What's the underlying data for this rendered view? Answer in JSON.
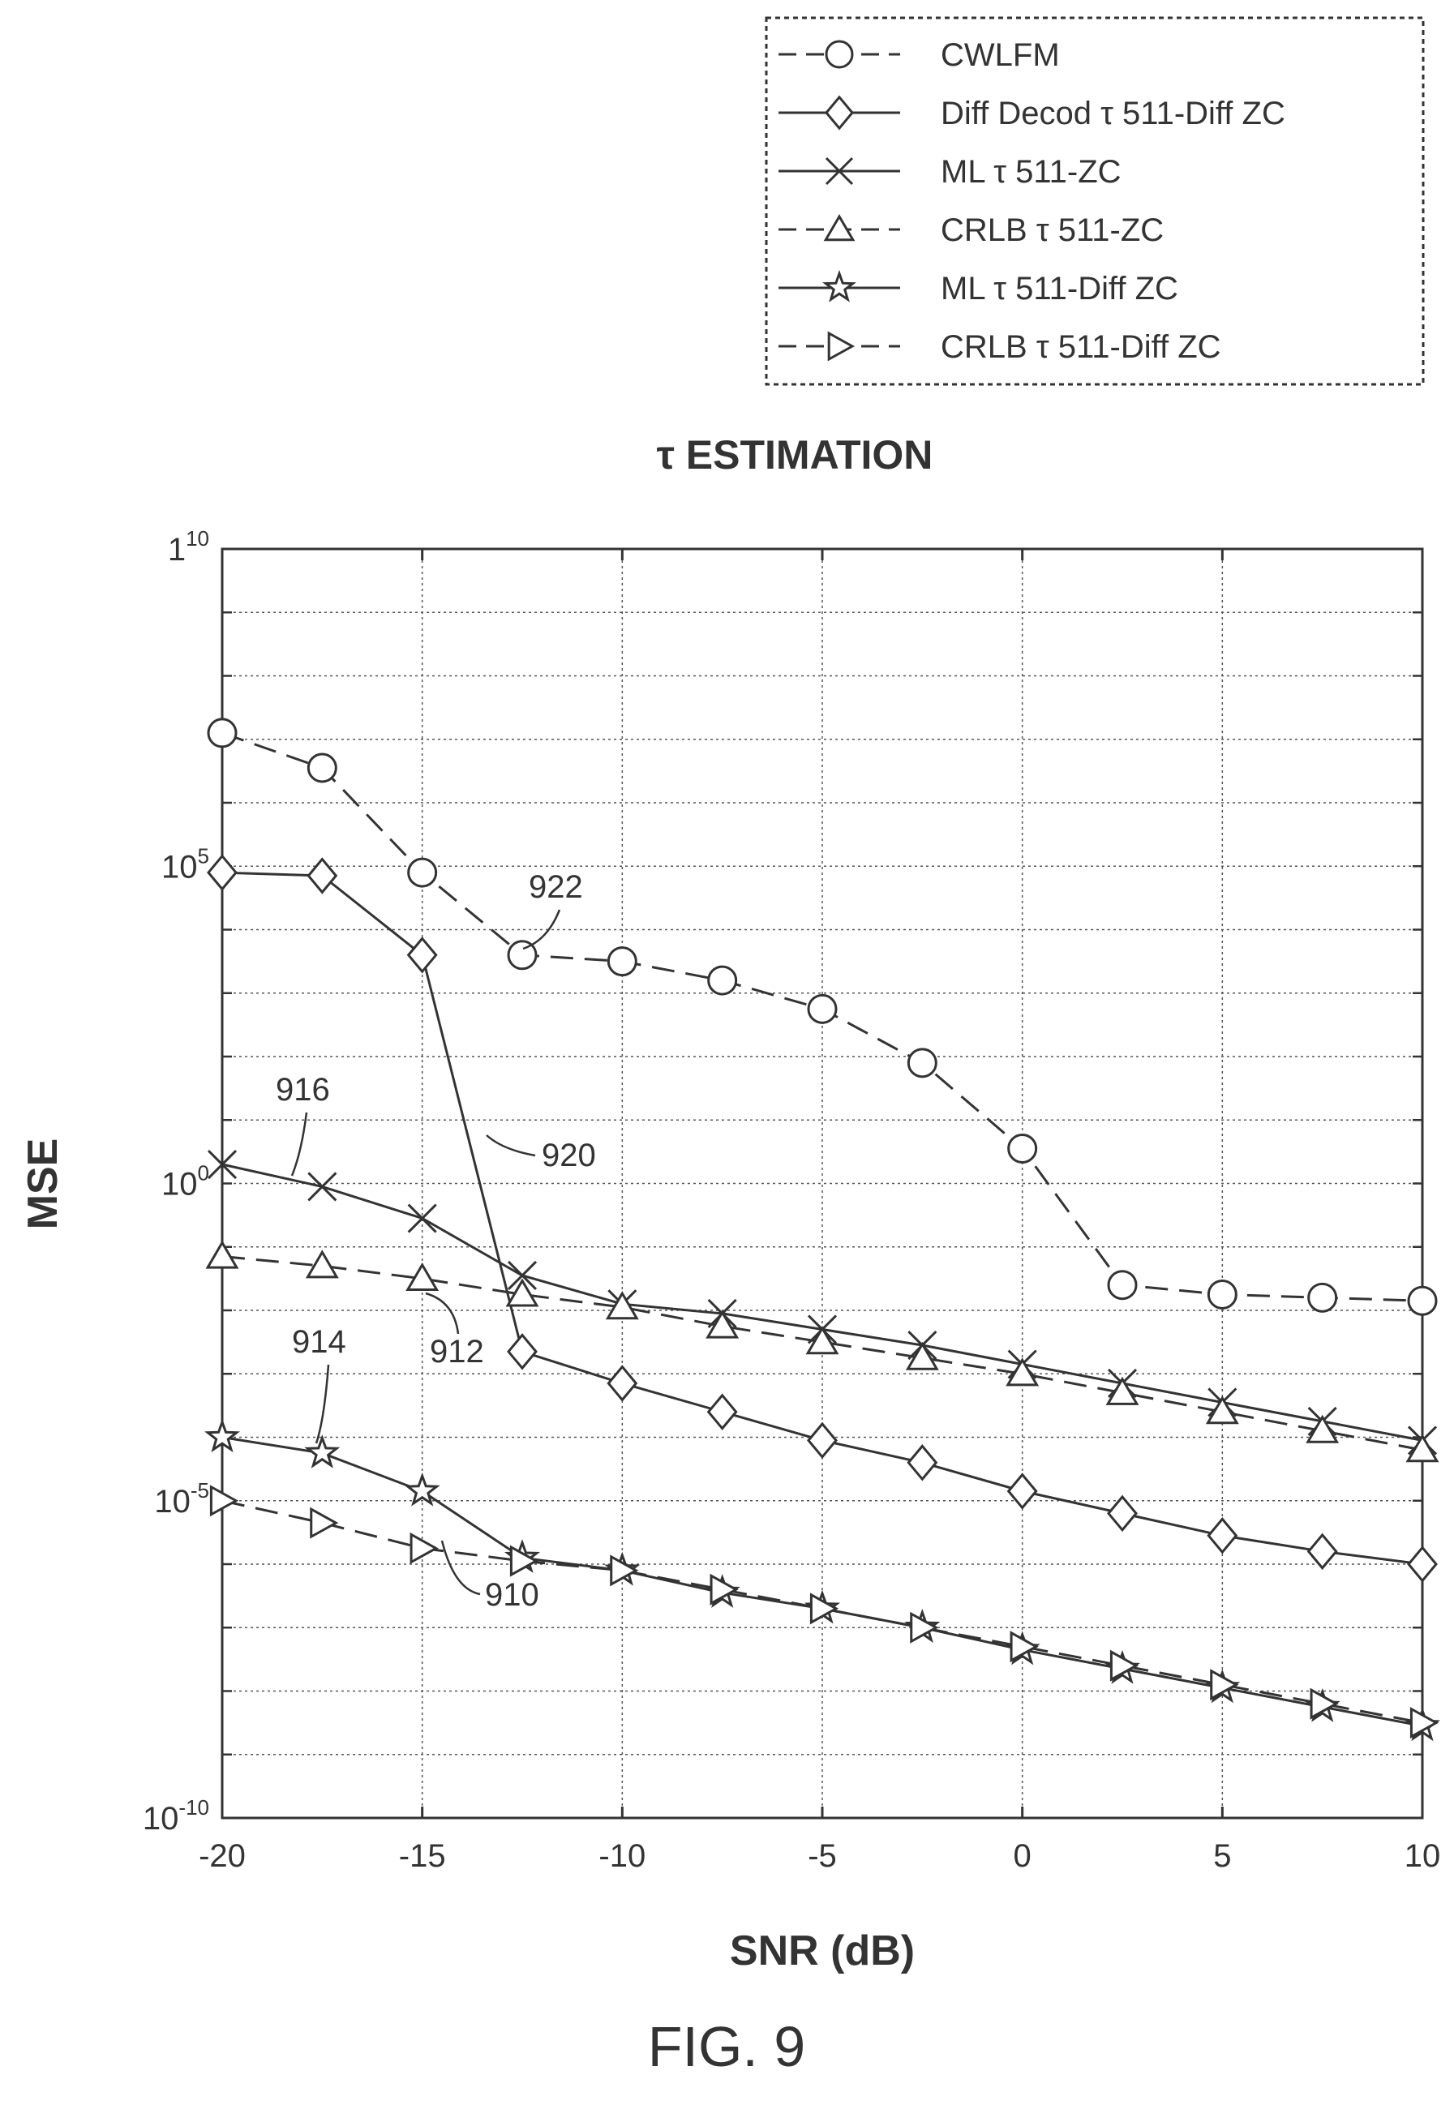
{
  "chart_data": {
    "type": "line",
    "title": "τ ESTIMATION",
    "xlabel": "SNR (dB)",
    "ylabel": "MSE",
    "xlim": [
      -20,
      10
    ],
    "ylim_log10": [
      -10,
      10
    ],
    "y_scale": "log",
    "grid": true,
    "legend_position": "top-right, outside plot",
    "x_ticks": [
      -20,
      -15,
      -10,
      -5,
      0,
      5,
      10
    ],
    "y_ticks": [
      {
        "base": "10",
        "exp": "-10",
        "value_log10": -10
      },
      {
        "base": "10",
        "exp": "-5",
        "value_log10": -5
      },
      {
        "base": "10",
        "exp": "0",
        "value_log10": 0
      },
      {
        "base": "10",
        "exp": "5",
        "value_log10": 5
      },
      {
        "base": "1",
        "exp": "10",
        "value_log10": 10
      }
    ],
    "x": [
      -20,
      -17.5,
      -15,
      -12.5,
      -10,
      -7.5,
      -5,
      -2.5,
      0,
      2.5,
      5,
      7.5,
      10
    ],
    "series": [
      {
        "name": "CWLFM",
        "marker": "circle",
        "dash": true,
        "color": "#333333",
        "log10_values": [
          7.1,
          6.55,
          4.9,
          3.6,
          3.5,
          3.2,
          2.75,
          1.9,
          0.55,
          -1.6,
          -1.75,
          -1.8,
          -1.85
        ]
      },
      {
        "name": "Diff Decod τ 511-Diff ZC",
        "marker": "diamond",
        "dash": false,
        "color": "#333333",
        "log10_values": [
          4.9,
          4.85,
          3.6,
          -2.65,
          -3.15,
          -3.6,
          -4.05,
          -4.4,
          -4.85,
          -5.2,
          -5.55,
          -5.8,
          -6.0
        ]
      },
      {
        "name": "ML τ 511-ZC",
        "marker": "x",
        "dash": false,
        "color": "#333333",
        "log10_values": [
          0.3,
          -0.05,
          -0.55,
          -1.45,
          -1.9,
          -2.05,
          -2.3,
          -2.55,
          -2.85,
          -3.15,
          -3.45,
          -3.75,
          -4.05
        ]
      },
      {
        "name": "CRLB τ 511-ZC",
        "marker": "triangle",
        "dash": true,
        "color": "#333333",
        "log10_values": [
          -1.15,
          -1.3,
          -1.5,
          -1.75,
          -1.95,
          -2.25,
          -2.5,
          -2.75,
          -3.0,
          -3.3,
          -3.6,
          -3.9,
          -4.2
        ]
      },
      {
        "name": "ML τ 511-Diff ZC",
        "marker": "star",
        "dash": false,
        "color": "#333333",
        "log10_values": [
          -4.0,
          -4.25,
          -4.85,
          -5.9,
          -6.1,
          -6.45,
          -6.7,
          -7.0,
          -7.35,
          -7.65,
          -7.95,
          -8.25,
          -8.55
        ]
      },
      {
        "name": "CRLB τ 511-Diff ZC",
        "marker": "triangle-right",
        "dash": true,
        "color": "#333333",
        "log10_values": [
          -5.0,
          -5.35,
          -5.75,
          -5.95,
          -6.1,
          -6.4,
          -6.7,
          -7.0,
          -7.3,
          -7.6,
          -7.9,
          -8.2,
          -8.5
        ]
      }
    ],
    "annotations": [
      {
        "text": "922",
        "target_series": "CWLFM"
      },
      {
        "text": "920",
        "target_series": "Diff Decod τ 511-Diff ZC"
      },
      {
        "text": "916",
        "target_series": "ML τ 511-ZC"
      },
      {
        "text": "912",
        "target_series": "CRLB τ 511-ZC"
      },
      {
        "text": "914",
        "target_series": "ML τ 511-Diff ZC"
      },
      {
        "text": "910",
        "target_series": "CRLB τ 511-Diff ZC"
      }
    ]
  },
  "figure_label": "FIG. 9"
}
